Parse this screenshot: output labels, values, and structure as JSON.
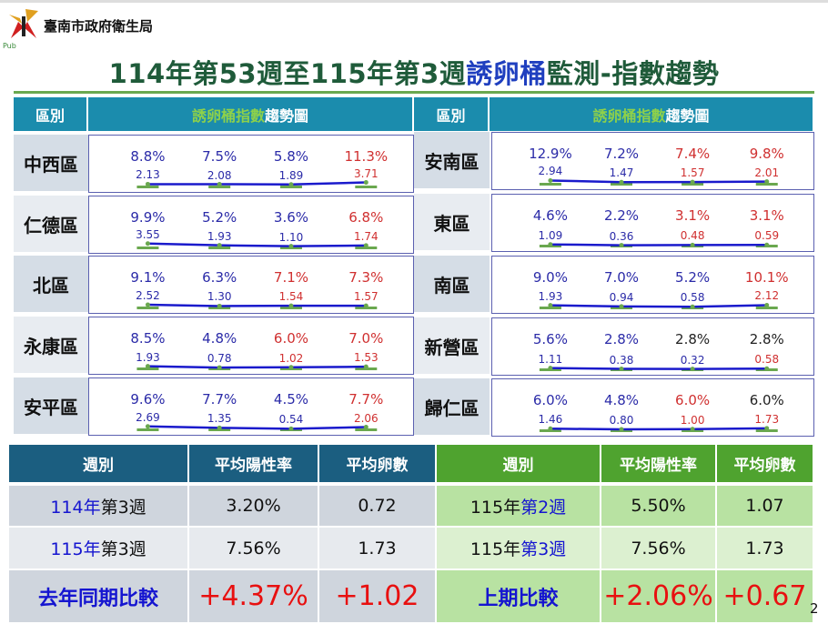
{
  "header": {
    "org_name": "臺南市政府衛生局",
    "org_sub": "Pub",
    "title_pre": "114年第53週至115年第3週",
    "title_hl": "誘卵桶",
    "title_post": "監測-指數趨勢"
  },
  "columns": {
    "district": "區別",
    "chart_hl": "誘卵桶指數",
    "chart_rest": "趨勢圖"
  },
  "colors": {
    "blue": "#2b2ba8",
    "red": "#d03030",
    "black": "#222222",
    "line": "#1a1acc",
    "dot": "#6aa84f"
  },
  "left": [
    {
      "name": "中西區",
      "points": [
        {
          "rate": "8.8%",
          "rc": "blue",
          "count": "2.13",
          "cc": "blue"
        },
        {
          "rate": "7.5%",
          "rc": "blue",
          "count": "2.08",
          "cc": "blue"
        },
        {
          "rate": "5.8%",
          "rc": "blue",
          "count": "1.89",
          "cc": "blue"
        },
        {
          "rate": "11.3%",
          "rc": "red",
          "count": "3.71",
          "cc": "red"
        }
      ]
    },
    {
      "name": "仁德區",
      "points": [
        {
          "rate": "9.9%",
          "rc": "blue",
          "count": "3.55",
          "cc": "blue"
        },
        {
          "rate": "5.2%",
          "rc": "blue",
          "count": "1.93",
          "cc": "blue"
        },
        {
          "rate": "3.6%",
          "rc": "blue",
          "count": "1.10",
          "cc": "blue"
        },
        {
          "rate": "6.8%",
          "rc": "red",
          "count": "1.74",
          "cc": "red"
        }
      ]
    },
    {
      "name": "北區",
      "points": [
        {
          "rate": "9.1%",
          "rc": "blue",
          "count": "2.52",
          "cc": "blue"
        },
        {
          "rate": "6.3%",
          "rc": "blue",
          "count": "1.30",
          "cc": "blue"
        },
        {
          "rate": "7.1%",
          "rc": "red",
          "count": "1.54",
          "cc": "red"
        },
        {
          "rate": "7.3%",
          "rc": "red",
          "count": "1.57",
          "cc": "red"
        }
      ]
    },
    {
      "name": "永康區",
      "points": [
        {
          "rate": "8.5%",
          "rc": "blue",
          "count": "1.93",
          "cc": "blue"
        },
        {
          "rate": "4.8%",
          "rc": "blue",
          "count": "0.78",
          "cc": "blue"
        },
        {
          "rate": "6.0%",
          "rc": "red",
          "count": "1.02",
          "cc": "red"
        },
        {
          "rate": "7.0%",
          "rc": "red",
          "count": "1.53",
          "cc": "red"
        }
      ]
    },
    {
      "name": "安平區",
      "points": [
        {
          "rate": "9.6%",
          "rc": "blue",
          "count": "2.69",
          "cc": "blue"
        },
        {
          "rate": "7.7%",
          "rc": "blue",
          "count": "1.35",
          "cc": "blue"
        },
        {
          "rate": "4.5%",
          "rc": "blue",
          "count": "0.54",
          "cc": "blue"
        },
        {
          "rate": "7.7%",
          "rc": "red",
          "count": "2.06",
          "cc": "red"
        }
      ]
    }
  ],
  "right": [
    {
      "name": "安南區",
      "points": [
        {
          "rate": "12.9%",
          "rc": "blue",
          "count": "2.94",
          "cc": "blue"
        },
        {
          "rate": "7.2%",
          "rc": "blue",
          "count": "1.47",
          "cc": "blue"
        },
        {
          "rate": "7.4%",
          "rc": "red",
          "count": "1.57",
          "cc": "red"
        },
        {
          "rate": "9.8%",
          "rc": "red",
          "count": "2.01",
          "cc": "red"
        }
      ]
    },
    {
      "name": "東區",
      "points": [
        {
          "rate": "4.6%",
          "rc": "blue",
          "count": "1.09",
          "cc": "blue"
        },
        {
          "rate": "2.2%",
          "rc": "blue",
          "count": "0.36",
          "cc": "blue"
        },
        {
          "rate": "3.1%",
          "rc": "red",
          "count": "0.48",
          "cc": "red"
        },
        {
          "rate": "3.1%",
          "rc": "red",
          "count": "0.59",
          "cc": "red"
        }
      ]
    },
    {
      "name": "南區",
      "points": [
        {
          "rate": "9.0%",
          "rc": "blue",
          "count": "1.93",
          "cc": "blue"
        },
        {
          "rate": "7.0%",
          "rc": "blue",
          "count": "0.94",
          "cc": "blue"
        },
        {
          "rate": "5.2%",
          "rc": "blue",
          "count": "0.58",
          "cc": "blue"
        },
        {
          "rate": "10.1%",
          "rc": "red",
          "count": "2.12",
          "cc": "red"
        }
      ]
    },
    {
      "name": "新營區",
      "points": [
        {
          "rate": "5.6%",
          "rc": "blue",
          "count": "1.11",
          "cc": "blue"
        },
        {
          "rate": "2.8%",
          "rc": "blue",
          "count": "0.38",
          "cc": "blue"
        },
        {
          "rate": "2.8%",
          "rc": "black",
          "count": "0.32",
          "cc": "blue"
        },
        {
          "rate": "2.8%",
          "rc": "black",
          "count": "0.58",
          "cc": "red"
        }
      ]
    },
    {
      "name": "歸仁區",
      "points": [
        {
          "rate": "6.0%",
          "rc": "blue",
          "count": "1.46",
          "cc": "blue"
        },
        {
          "rate": "4.8%",
          "rc": "blue",
          "count": "0.80",
          "cc": "blue"
        },
        {
          "rate": "6.0%",
          "rc": "red",
          "count": "1.00",
          "cc": "red"
        },
        {
          "rate": "6.0%",
          "rc": "black",
          "count": "1.73",
          "cc": "red"
        }
      ]
    }
  ],
  "summary": {
    "headers": [
      "週別",
      "平均陽性率",
      "平均卵數",
      "週別",
      "平均陽性率",
      "平均卵數"
    ],
    "rows": [
      {
        "l_a": "114年",
        "l_b": "第3週",
        "l_rate": "3.20%",
        "l_cnt": "0.72",
        "r_a": "115年",
        "r_b": "第2週",
        "r_rate": "5.50%",
        "r_cnt": "1.07"
      },
      {
        "l_a": "115年",
        "l_b": "第3週",
        "l_rate": "7.56%",
        "l_cnt": "1.73",
        "r_a": "115年",
        "r_b": "第3週",
        "r_rate": "7.56%",
        "r_cnt": "1.73"
      }
    ],
    "compare": {
      "l_label": "去年同期比較",
      "l_rate": "+4.37%",
      "l_cnt": "+1.02",
      "r_label": "上期比較",
      "r_rate": "+2.06%",
      "r_cnt": "+0.67"
    }
  },
  "page_number": "2"
}
